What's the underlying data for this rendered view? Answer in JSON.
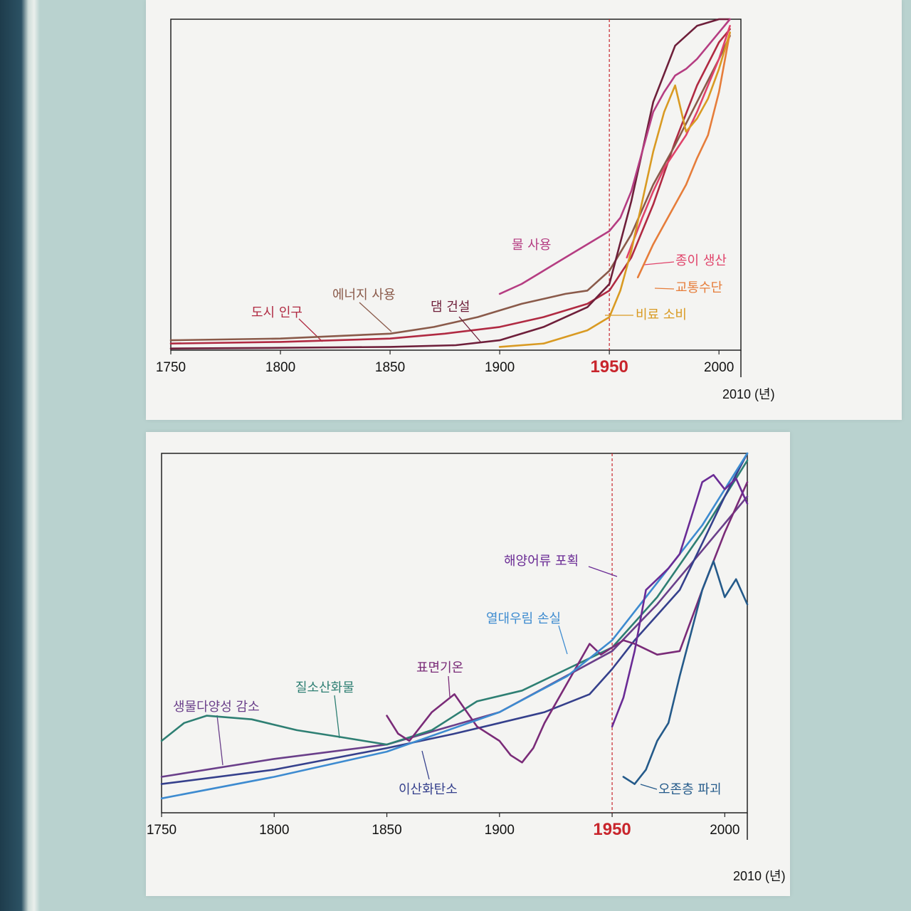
{
  "page": {
    "background": "#b9d2cf",
    "panel_color": "#f4f4f2"
  },
  "chart_data": [
    {
      "type": "line",
      "title": "",
      "xlabel": "2010 (년)",
      "ylabel": "",
      "xlim": [
        1750,
        2010
      ],
      "ylim": [
        0,
        100
      ],
      "x_ticks": [
        "1750",
        "1800",
        "1850",
        "1900",
        "1950",
        "2000"
      ],
      "x_tick_values": [
        1750,
        1800,
        1850,
        1900,
        1950,
        2000
      ],
      "highlight_tick": "1950",
      "vline": 1950,
      "series": [
        {
          "name": "도시 인구",
          "color": "#b02a42",
          "x": [
            1750,
            1800,
            1850,
            1875,
            1900,
            1920,
            1940,
            1950,
            1960,
            1970,
            1980,
            1990,
            2000,
            2005
          ],
          "y": [
            2,
            2.5,
            3.5,
            5,
            7,
            10,
            14,
            18,
            28,
            44,
            63,
            80,
            93,
            97
          ]
        },
        {
          "name": "에너지 사용",
          "color": "#8a5a4a",
          "x": [
            1750,
            1800,
            1850,
            1870,
            1890,
            1910,
            1930,
            1940,
            1950,
            1960,
            1970,
            1980,
            1990,
            2000,
            2005
          ],
          "y": [
            3,
            3.5,
            5,
            7,
            10,
            14,
            17,
            18,
            24,
            35,
            50,
            62,
            75,
            88,
            95
          ]
        },
        {
          "name": "댐 건설",
          "color": "#6e1f3a",
          "x": [
            1750,
            1800,
            1850,
            1880,
            1900,
            1920,
            1940,
            1950,
            1960,
            1970,
            1980,
            1990,
            2000,
            2005
          ],
          "y": [
            0.5,
            0.7,
            1,
            1.5,
            3,
            7,
            13,
            20,
            45,
            75,
            92,
            98,
            100,
            100
          ]
        },
        {
          "name": "물 사용",
          "color": "#b53d82",
          "x": [
            1900,
            1910,
            1920,
            1930,
            1940,
            1950,
            1955,
            1960,
            1965,
            1970,
            1975,
            1980,
            1985,
            1990,
            1995,
            2000,
            2005
          ],
          "y": [
            17,
            20,
            24,
            28,
            32,
            36,
            40,
            48,
            60,
            72,
            78,
            83,
            85,
            88,
            92,
            96,
            100
          ]
        },
        {
          "name": "종이 생산",
          "color": "#e0436a",
          "x": [
            1958,
            1965,
            1970,
            1975,
            1980,
            1985,
            1990,
            1995,
            2000,
            2005
          ],
          "y": [
            28,
            40,
            48,
            55,
            60,
            65,
            72,
            80,
            88,
            98
          ]
        },
        {
          "name": "교통수단",
          "color": "#e67d3a",
          "x": [
            1963,
            1970,
            1975,
            1980,
            1985,
            1990,
            1995,
            2000,
            2005
          ],
          "y": [
            22,
            32,
            38,
            44,
            50,
            58,
            65,
            78,
            96
          ]
        },
        {
          "name": "비료 소비",
          "color": "#d99a22",
          "x": [
            1900,
            1920,
            1940,
            1950,
            1955,
            1960,
            1965,
            1970,
            1975,
            1980,
            1985,
            1990,
            1995,
            2000,
            2005
          ],
          "y": [
            1,
            2,
            6,
            10,
            18,
            30,
            45,
            60,
            72,
            80,
            66,
            70,
            76,
            85,
            96
          ]
        }
      ]
    },
    {
      "type": "line",
      "title": "",
      "xlabel": "2010 (년)",
      "ylabel": "",
      "xlim": [
        1750,
        2010
      ],
      "ylim": [
        0,
        100
      ],
      "x_ticks": [
        "1750",
        "1800",
        "1850",
        "1900",
        "1950",
        "2000"
      ],
      "x_tick_values": [
        1750,
        1800,
        1850,
        1900,
        1950,
        2000
      ],
      "highlight_tick": "1950",
      "vline": 1950,
      "series": [
        {
          "name": "생물다양성 감소",
          "color": "#6a3f8a",
          "x": [
            1750,
            1800,
            1850,
            1900,
            1950,
            1970,
            1990,
            2010
          ],
          "y": [
            10,
            15,
            19,
            28,
            45,
            58,
            73,
            88
          ]
        },
        {
          "name": "질소산화물",
          "color": "#2e7f73",
          "x": [
            1750,
            1760,
            1770,
            1790,
            1810,
            1830,
            1850,
            1870,
            1890,
            1910,
            1930,
            1950,
            1970,
            1990,
            2010
          ],
          "y": [
            20,
            25,
            27,
            26,
            23,
            21,
            19,
            23,
            31,
            34,
            40,
            46,
            60,
            78,
            98
          ]
        },
        {
          "name": "이산화탄소",
          "color": "#35408c",
          "x": [
            1750,
            1800,
            1850,
            1880,
            1900,
            1920,
            1940,
            1950,
            1960,
            1970,
            1980,
            1990,
            2000,
            2010
          ],
          "y": [
            8,
            12,
            18,
            22,
            25,
            28,
            33,
            40,
            48,
            55,
            62,
            75,
            88,
            100
          ]
        },
        {
          "name": "표면기온",
          "color": "#7a2b78",
          "x": [
            1850,
            1855,
            1860,
            1870,
            1880,
            1890,
            1900,
            1905,
            1910,
            1915,
            1920,
            1930,
            1940,
            1945,
            1950,
            1955,
            1960,
            1970,
            1980,
            1990,
            2000,
            2010
          ],
          "y": [
            27,
            22,
            20,
            28,
            33,
            24,
            20,
            16,
            14,
            18,
            25,
            36,
            47,
            44,
            46,
            48,
            47,
            44,
            45,
            62,
            78,
            92
          ]
        },
        {
          "name": "열대우림 손실",
          "color": "#3d8bd0",
          "x": [
            1750,
            1800,
            1850,
            1900,
            1930,
            1950,
            1960,
            1970,
            1980,
            1990,
            2000,
            2010
          ],
          "y": [
            4,
            10,
            17,
            28,
            38,
            48,
            56,
            64,
            72,
            80,
            90,
            100
          ]
        },
        {
          "name": "해양어류 포획",
          "color": "#6a2b95",
          "x": [
            1950,
            1955,
            1960,
            1965,
            1970,
            1975,
            1980,
            1985,
            1990,
            1995,
            2000,
            2005,
            2010
          ],
          "y": [
            24,
            32,
            45,
            62,
            65,
            68,
            72,
            82,
            92,
            94,
            90,
            93,
            86
          ]
        },
        {
          "name": "오존층 파괴",
          "color": "#245a8a",
          "x": [
            1955,
            1960,
            1965,
            1970,
            1975,
            1980,
            1985,
            1990,
            1995,
            2000,
            2005,
            2010
          ],
          "y": [
            10,
            8,
            12,
            20,
            25,
            38,
            50,
            62,
            70,
            60,
            65,
            58
          ]
        }
      ]
    }
  ]
}
